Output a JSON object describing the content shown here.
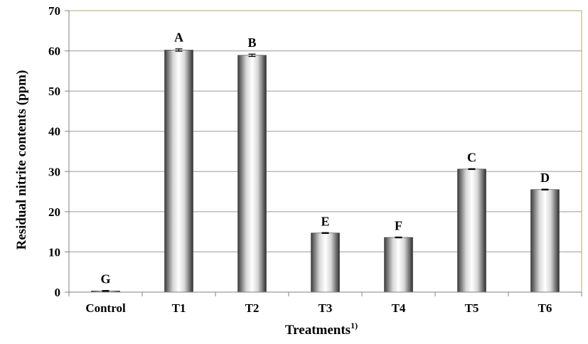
{
  "chart_data": {
    "type": "bar",
    "title": "",
    "xlabel": "Treatments",
    "xlabel_superscript": "1)",
    "ylabel": "Residual nitrite contents (ppm)",
    "ylim": [
      0,
      70
    ],
    "yticks": [
      "0",
      "10",
      "20",
      "30",
      "40",
      "50",
      "60",
      "70"
    ],
    "categories": [
      "Control",
      "T1",
      "T2",
      "T3",
      "T4",
      "T5",
      "T6"
    ],
    "values": [
      0.3,
      60.2,
      58.9,
      14.7,
      13.6,
      30.6,
      25.5
    ],
    "errors": [
      0.1,
      0.3,
      0.3,
      0.1,
      0.1,
      0.1,
      0.1
    ],
    "significance_labels": [
      "G",
      "A",
      "B",
      "E",
      "F",
      "C",
      "D"
    ],
    "grid": "horizontal",
    "legend": "none",
    "colors": {
      "bar_edge": "#3a3a3a",
      "bar_light": "#ffffff",
      "bar_dark": "#2f2f2f",
      "grid": "#9a9a9a",
      "frame": "#b8a46a"
    }
  }
}
